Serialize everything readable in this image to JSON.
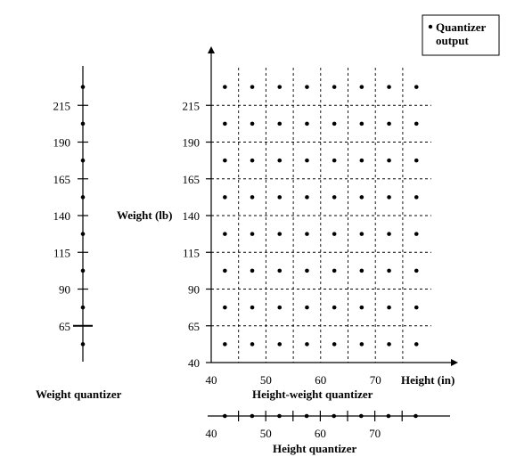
{
  "legend": {
    "line1": "Quantizer",
    "line2": "output"
  },
  "weight_quantizer": {
    "title": "Weight quantizer",
    "tick_labels": [
      "215",
      "190",
      "165",
      "140",
      "115",
      "90",
      "65"
    ],
    "outputs_lb": [
      227.5,
      202.5,
      177.5,
      152.5,
      127.5,
      102.5,
      77.5,
      52.5
    ],
    "decision_boundaries_lb": [
      215,
      190,
      165,
      140,
      115,
      90,
      65
    ]
  },
  "height_weight_quantizer": {
    "title": "Height-weight quantizer",
    "y_axis_label": "Weight (lb)",
    "x_axis_label": "Height (in)",
    "y_tick_labels": [
      "215",
      "190",
      "165",
      "140",
      "115",
      "90",
      "65",
      "40"
    ],
    "x_tick_labels": [
      "40",
      "50",
      "60",
      "70"
    ],
    "height_boundaries_in": [
      45,
      50,
      55,
      60,
      65,
      70,
      75
    ],
    "weight_boundaries_lb": [
      65,
      90,
      115,
      140,
      165,
      190,
      215
    ],
    "height_outputs_in": [
      42.5,
      47.5,
      52.5,
      57.5,
      62.5,
      67.5,
      72.5,
      77.5
    ],
    "weight_outputs_lb": [
      52.5,
      77.5,
      102.5,
      127.5,
      152.5,
      177.5,
      202.5,
      227.5
    ]
  },
  "height_quantizer": {
    "title": "Height quantizer",
    "tick_labels": [
      "40",
      "50",
      "60",
      "70"
    ],
    "outputs_in": [
      42.5,
      47.5,
      52.5,
      57.5,
      62.5,
      67.5,
      72.5,
      77.5
    ],
    "decision_boundaries_in": [
      45,
      50,
      55,
      60,
      65,
      70,
      75
    ]
  }
}
